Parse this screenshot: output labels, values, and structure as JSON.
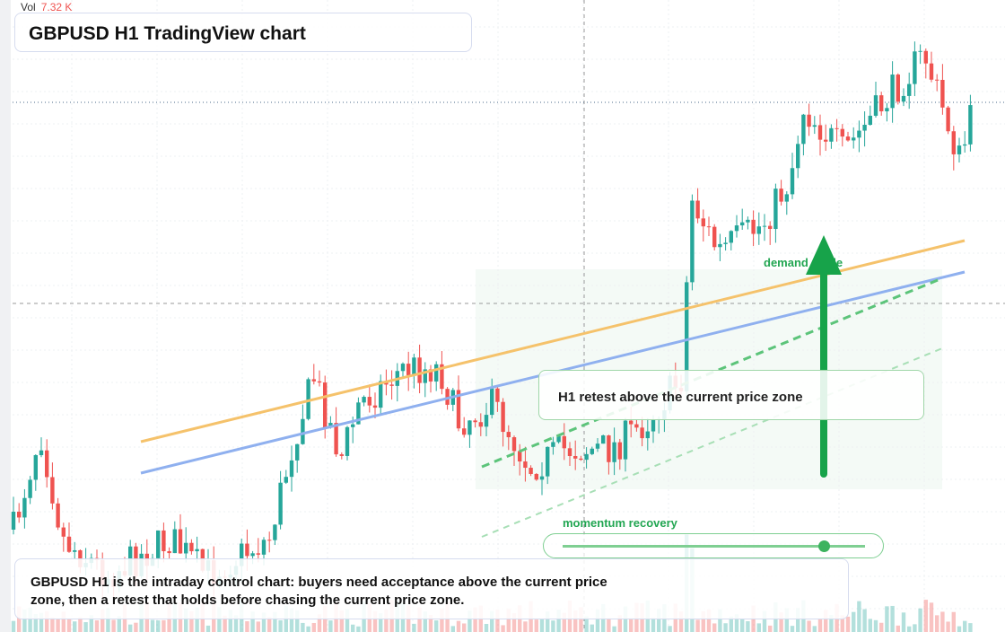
{
  "header": {
    "vol_label": "Vol",
    "vol_value": "7.32 K",
    "title": "GBPUSD H1 TradingView chart"
  },
  "annotations": {
    "demand": "demand guide",
    "retest": "H1 retest above the current price zone",
    "momentum": "momentum recovery"
  },
  "caption": "GBPUSD H1 is the intraday control chart: buyers need acceptance above the current price zone, then a retest that holds before chasing the current price zone."
}
